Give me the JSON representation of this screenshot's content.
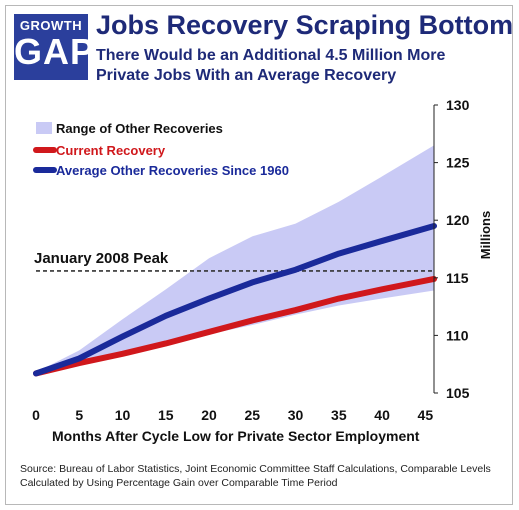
{
  "logo": {
    "line1": "GROWTH",
    "line2": "GAP"
  },
  "header": {
    "title": "Jobs Recovery Scraping Bottom",
    "subtitle": "There Would be an Additional 4.5 Million More Private Jobs With an Average Recovery"
  },
  "footer": {
    "source": "Source:  Bureau of Labor Statistics, Joint Economic Committee Staff Calculations, Comparable Levels Calculated by Using Percentage Gain over Comparable Time Period"
  },
  "colors": {
    "range": "#c9caf5",
    "current": "#d0181c",
    "average": "#1a2a9a",
    "peak_line": "#333333",
    "title": "#1e2a78"
  },
  "chart_data": {
    "type": "line",
    "title": "Jobs Recovery Scraping Bottom",
    "xlabel": "Months After Cycle Low for Private Sector Employment",
    "ylabel": "Millions",
    "xlim": [
      0,
      46
    ],
    "ylim": [
      105,
      130
    ],
    "x_ticks": [
      0,
      5,
      10,
      15,
      20,
      25,
      30,
      35,
      40,
      45
    ],
    "y_ticks": [
      105,
      110,
      115,
      120,
      125,
      130
    ],
    "y_axis_side": "right",
    "grid": false,
    "legend": {
      "placement": "top-left",
      "entries": [
        "Range of Other Recoveries",
        "Current Recovery",
        "Average Other Recoveries Since 1960"
      ]
    },
    "annotations": [
      {
        "text": "January 2008 Peak",
        "y": 115.6
      }
    ],
    "x": [
      0,
      5,
      10,
      15,
      20,
      25,
      30,
      35,
      40,
      46
    ],
    "series": [
      {
        "name": "Current Recovery",
        "values": [
          106.7,
          107.6,
          108.4,
          109.3,
          110.3,
          111.3,
          112.2,
          113.2,
          114.0,
          114.9
        ]
      },
      {
        "name": "Average Other Recoveries Since 1960",
        "values": [
          106.7,
          108.0,
          109.9,
          111.7,
          113.2,
          114.6,
          115.7,
          117.1,
          118.2,
          119.5
        ]
      }
    ],
    "range": {
      "name": "Range of Other Recoveries",
      "upper": [
        106.8,
        108.7,
        111.4,
        114.0,
        116.7,
        118.6,
        119.7,
        121.6,
        123.8,
        126.5
      ],
      "lower": [
        106.5,
        107.5,
        108.3,
        109.3,
        110.1,
        110.9,
        111.8,
        112.6,
        113.2,
        113.9
      ]
    }
  }
}
